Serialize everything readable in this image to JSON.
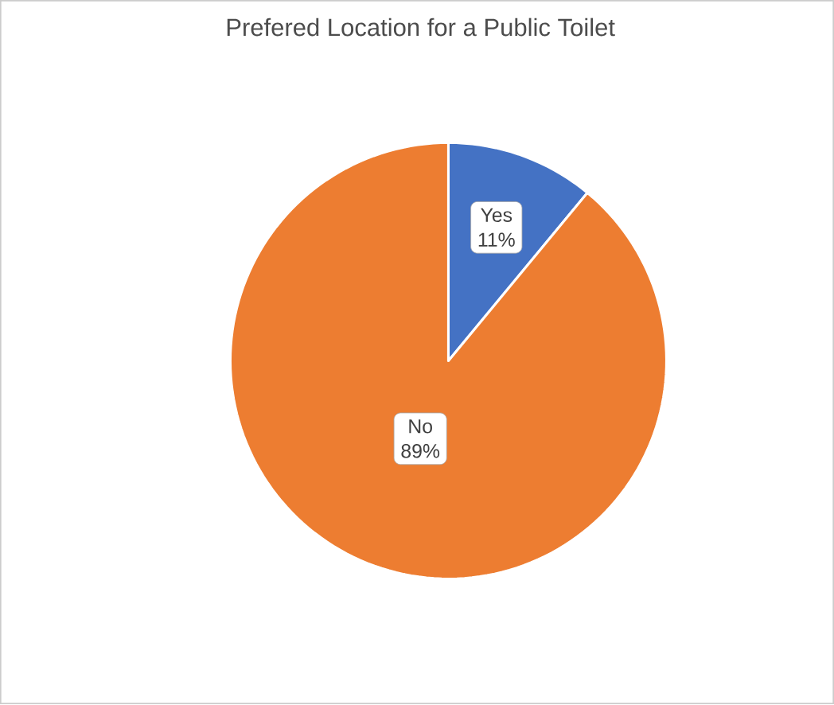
{
  "chart_data": {
    "type": "pie",
    "title": "Prefered Location for a Public Toilet",
    "categories": [
      "Yes",
      "No"
    ],
    "values": [
      11,
      89
    ],
    "colors": [
      "#4472c4",
      "#ed7d31"
    ],
    "value_labels": [
      "11%",
      "89%"
    ]
  }
}
